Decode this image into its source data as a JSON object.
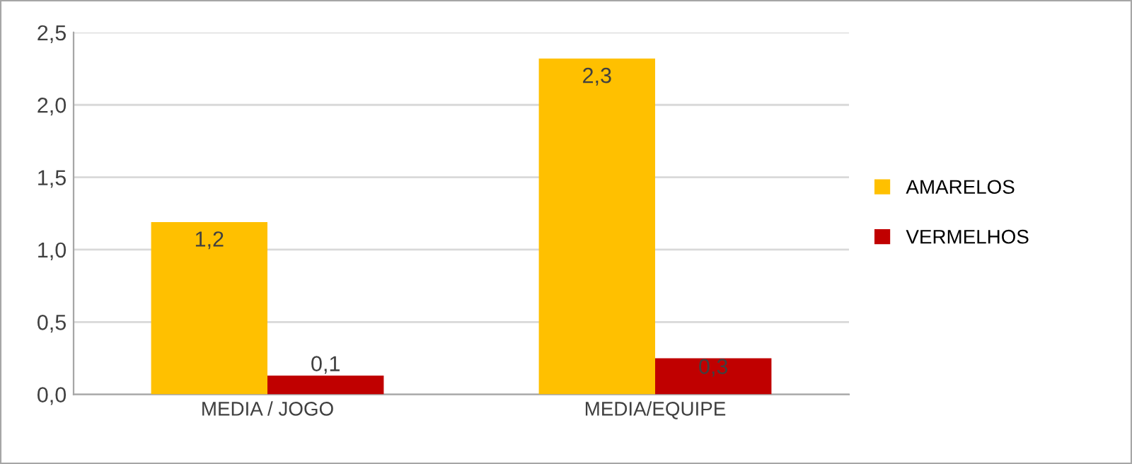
{
  "chart_data": {
    "type": "bar",
    "categories": [
      "MEDIA / JOGO",
      "MEDIA/EQUIPE"
    ],
    "series": [
      {
        "name": "AMARELOS",
        "color": "#ffc000",
        "values": [
          1.19,
          2.32
        ],
        "value_labels": [
          "1,2",
          "2,3"
        ]
      },
      {
        "name": "VERMELHOS",
        "color": "#c00000",
        "values": [
          0.13,
          0.25
        ],
        "value_labels": [
          "0,1",
          "0,3"
        ]
      }
    ],
    "ylim": [
      0,
      2.5
    ],
    "yticks": [
      {
        "value": 0,
        "label": "0,0"
      },
      {
        "value": 0.5,
        "label": "0,5"
      },
      {
        "value": 1.0,
        "label": "1,0"
      },
      {
        "value": 1.5,
        "label": "1,5"
      },
      {
        "value": 2.0,
        "label": "2,0"
      },
      {
        "value": 2.5,
        "label": "2,5"
      }
    ],
    "grid": "y",
    "legend": "right"
  }
}
